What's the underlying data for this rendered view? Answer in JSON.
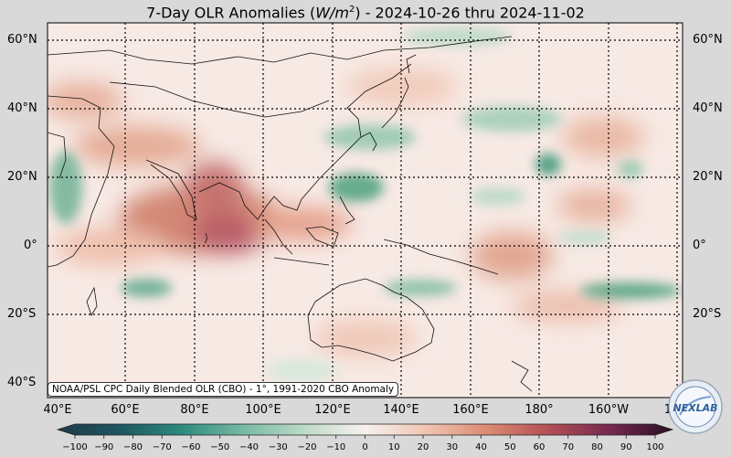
{
  "title": {
    "prefix": "7-Day OLR Anomalies (",
    "units_base": "W/m",
    "units_exp": "2",
    "suffix": ") - 2024-10-26 thru 2024-11-02"
  },
  "credit": "NOAA/PSL CPC Daily Blended OLR (CBO) - 1°, 1991-2020 CBO Anomaly",
  "lat_labels": [
    "60°N",
    "40°N",
    "20°N",
    "0°",
    "20°S",
    "40°S"
  ],
  "lat_labels_right": [
    "60°N",
    "40°N",
    "20°N",
    "0°",
    "20°S"
  ],
  "lon_labels": [
    "40°E",
    "60°E",
    "80°E",
    "100°E",
    "120°E",
    "140°E",
    "160°E",
    "180°",
    "160°W",
    "14"
  ],
  "colorbar": {
    "ticks": [
      "−100",
      "−90",
      "−80",
      "−70",
      "−60",
      "−50",
      "−40",
      "−30",
      "−20",
      "−10",
      "0",
      "10",
      "20",
      "30",
      "40",
      "50",
      "60",
      "70",
      "80",
      "90",
      "100"
    ],
    "colors_neg": [
      "#1d3b4a",
      "#1e5560",
      "#1d6e6e",
      "#2c8a7e",
      "#4aa390",
      "#76b9a1",
      "#9ccab3",
      "#bcdac8",
      "#d8e9dc",
      "#eef5ef"
    ],
    "colors_pos": [
      "#fbeee8",
      "#f7dccf",
      "#f0c4b1",
      "#e6a891",
      "#da8a73",
      "#c9695a",
      "#b24e53",
      "#953a55",
      "#74284f",
      "#4a1a3a"
    ]
  },
  "logo_text": "NEXLAB"
}
